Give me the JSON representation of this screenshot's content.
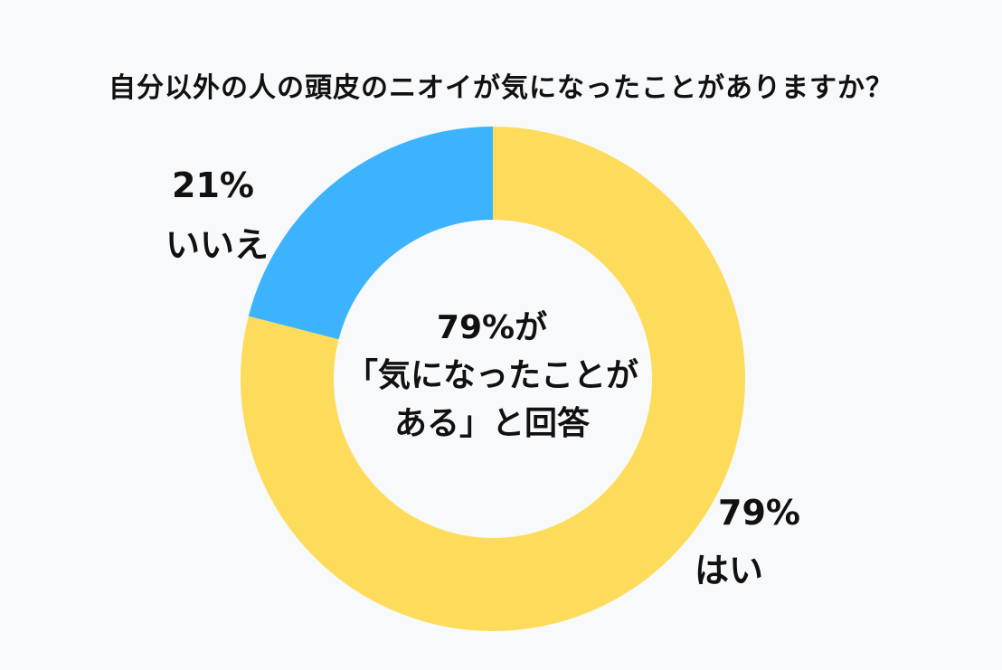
{
  "title": "自分以外の人の頭皮のニオイが気になったことがありますか？",
  "center_text": {
    "line1": "79%が",
    "line2": "「気になったことが",
    "line3": "ある」と回答"
  },
  "chart_data": {
    "type": "pie",
    "variant": "donut",
    "title": "自分以外の人の頭皮のニオイが気になったことがありますか？",
    "categories": [
      "はい",
      "いいえ"
    ],
    "values": [
      79,
      21
    ],
    "labels": [
      "79%",
      "21%"
    ],
    "colors": [
      "#fddc5c",
      "#3db3fe"
    ]
  }
}
